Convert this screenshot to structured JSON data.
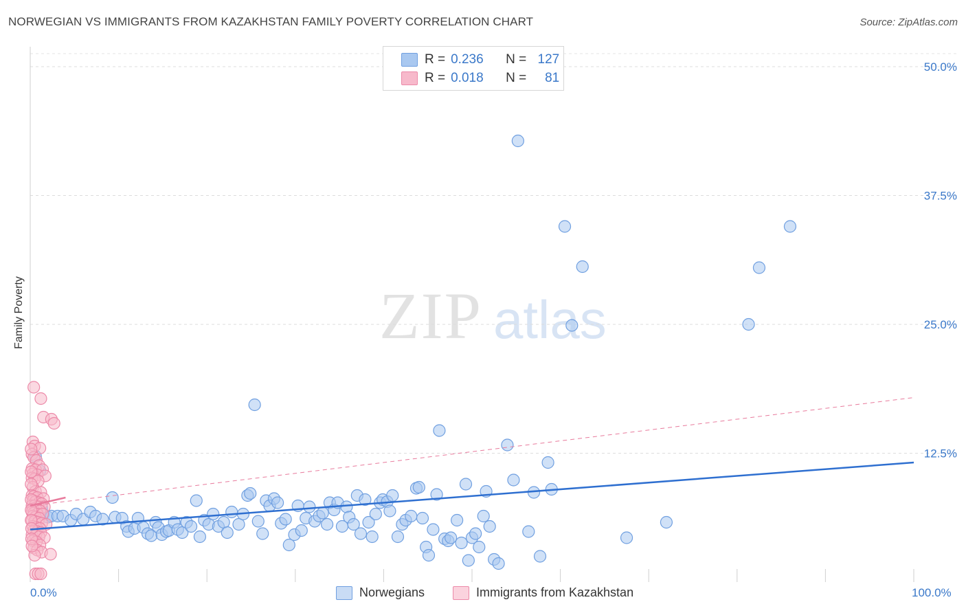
{
  "title": "NORWEGIAN VS IMMIGRANTS FROM KAZAKHSTAN FAMILY POVERTY CORRELATION CHART",
  "source": "Source: ZipAtlas.com",
  "watermark": {
    "zip": "ZIP",
    "atlas": "atlas"
  },
  "legend_top": {
    "rows": [
      {
        "r_label": "R =",
        "r_value": "0.236",
        "n_label": "N =",
        "n_value": "127",
        "color": "#a9c8f0",
        "border": "#6f9fe0"
      },
      {
        "r_label": "R =",
        "r_value": "0.018",
        "n_label": "N =",
        "n_value": "81",
        "color": "#f7b9cb",
        "border": "#ec89a8"
      }
    ]
  },
  "legend_bottom": [
    {
      "label": "Norwegians",
      "color": "#a9c8f0",
      "border": "#6f9fe0"
    },
    {
      "label": "Immigrants from Kazakhstan",
      "color": "#f7b9cb",
      "border": "#ec89a8"
    }
  ],
  "chart_data": {
    "type": "scatter",
    "title": "NORWEGIAN VS IMMIGRANTS FROM KAZAKHSTAN FAMILY POVERTY CORRELATION CHART",
    "xlabel": "",
    "ylabel": "Family Poverty",
    "xlim": [
      0,
      100
    ],
    "ylim": [
      0,
      50
    ],
    "x_tick_labels": [
      "0.0%",
      "100.0%"
    ],
    "y_ticks": [
      12.5,
      25.0,
      37.5,
      50.0
    ],
    "y_tick_labels": [
      "12.5%",
      "25.0%",
      "37.5%",
      "50.0%"
    ],
    "grid": true,
    "series": [
      {
        "name": "Norwegians",
        "color": "#6f9fe0",
        "fill": "#a9c8f0",
        "trend": {
          "x": [
            0,
            100
          ],
          "y": [
            5.1,
            11.6
          ],
          "style": "solid",
          "color": "#2e6fd0"
        },
        "points": [
          [
            0.6,
            12.2
          ],
          [
            1.1,
            10.8
          ],
          [
            1.3,
            7.2
          ],
          [
            1.5,
            6.6
          ],
          [
            2.0,
            6.3
          ],
          [
            2.4,
            6.4
          ],
          [
            3.1,
            6.4
          ],
          [
            3.7,
            6.4
          ],
          [
            4.6,
            6.0
          ],
          [
            5.2,
            6.6
          ],
          [
            6.0,
            6.1
          ],
          [
            6.8,
            6.8
          ],
          [
            7.4,
            6.4
          ],
          [
            8.2,
            6.1
          ],
          [
            9.3,
            8.2
          ],
          [
            9.6,
            6.3
          ],
          [
            10.4,
            6.2
          ],
          [
            10.9,
            5.4
          ],
          [
            11.1,
            4.9
          ],
          [
            11.8,
            5.2
          ],
          [
            12.2,
            6.2
          ],
          [
            12.8,
            5.3
          ],
          [
            13.3,
            4.7
          ],
          [
            13.7,
            4.5
          ],
          [
            14.2,
            5.8
          ],
          [
            14.5,
            5.3
          ],
          [
            14.9,
            4.6
          ],
          [
            15.4,
            4.9
          ],
          [
            15.7,
            5.0
          ],
          [
            16.3,
            5.8
          ],
          [
            16.7,
            5.1
          ],
          [
            17.2,
            4.8
          ],
          [
            17.7,
            5.8
          ],
          [
            18.2,
            5.4
          ],
          [
            18.8,
            7.9
          ],
          [
            19.2,
            4.4
          ],
          [
            19.7,
            6.0
          ],
          [
            20.2,
            5.6
          ],
          [
            20.7,
            6.6
          ],
          [
            21.3,
            5.4
          ],
          [
            21.9,
            5.8
          ],
          [
            22.3,
            4.8
          ],
          [
            22.8,
            6.8
          ],
          [
            23.6,
            5.6
          ],
          [
            24.1,
            6.6
          ],
          [
            24.6,
            8.4
          ],
          [
            24.9,
            8.6
          ],
          [
            25.4,
            17.2
          ],
          [
            25.8,
            5.9
          ],
          [
            26.3,
            4.7
          ],
          [
            26.7,
            7.9
          ],
          [
            27.1,
            7.4
          ],
          [
            27.6,
            8.1
          ],
          [
            28.0,
            7.7
          ],
          [
            28.4,
            5.7
          ],
          [
            28.9,
            6.1
          ],
          [
            29.3,
            3.6
          ],
          [
            29.9,
            4.6
          ],
          [
            30.3,
            7.4
          ],
          [
            30.7,
            5.0
          ],
          [
            31.2,
            6.2
          ],
          [
            31.6,
            7.3
          ],
          [
            32.2,
            5.9
          ],
          [
            32.7,
            6.4
          ],
          [
            33.1,
            6.7
          ],
          [
            33.6,
            5.6
          ],
          [
            33.9,
            7.7
          ],
          [
            34.4,
            7.0
          ],
          [
            34.8,
            7.7
          ],
          [
            35.3,
            5.4
          ],
          [
            35.8,
            7.3
          ],
          [
            36.1,
            6.3
          ],
          [
            36.6,
            5.6
          ],
          [
            37.0,
            8.4
          ],
          [
            37.4,
            4.7
          ],
          [
            37.9,
            8.0
          ],
          [
            38.3,
            5.8
          ],
          [
            38.7,
            4.4
          ],
          [
            39.1,
            6.6
          ],
          [
            39.6,
            7.7
          ],
          [
            39.9,
            8.0
          ],
          [
            40.4,
            7.8
          ],
          [
            40.7,
            6.9
          ],
          [
            41.0,
            8.4
          ],
          [
            41.6,
            4.4
          ],
          [
            42.1,
            5.6
          ],
          [
            42.5,
            6.0
          ],
          [
            43.1,
            6.4
          ],
          [
            43.7,
            9.1
          ],
          [
            44.0,
            9.2
          ],
          [
            44.4,
            6.2
          ],
          [
            44.8,
            3.4
          ],
          [
            45.1,
            2.6
          ],
          [
            45.6,
            5.1
          ],
          [
            46.0,
            8.5
          ],
          [
            46.3,
            14.7
          ],
          [
            46.9,
            4.2
          ],
          [
            47.3,
            4.0
          ],
          [
            47.6,
            4.3
          ],
          [
            48.3,
            6.0
          ],
          [
            48.8,
            3.8
          ],
          [
            49.3,
            9.5
          ],
          [
            49.6,
            2.1
          ],
          [
            50.0,
            4.3
          ],
          [
            50.4,
            4.7
          ],
          [
            50.8,
            3.4
          ],
          [
            51.3,
            6.4
          ],
          [
            51.6,
            8.8
          ],
          [
            52.0,
            5.4
          ],
          [
            52.5,
            2.2
          ],
          [
            53.0,
            1.8
          ],
          [
            54.0,
            13.3
          ],
          [
            54.7,
            9.9
          ],
          [
            55.2,
            42.8
          ],
          [
            56.4,
            4.9
          ],
          [
            57.0,
            8.7
          ],
          [
            57.7,
            2.5
          ],
          [
            58.6,
            11.6
          ],
          [
            59.0,
            9.0
          ],
          [
            60.5,
            34.5
          ],
          [
            61.3,
            24.9
          ],
          [
            62.5,
            30.6
          ],
          [
            67.5,
            4.3
          ],
          [
            72.0,
            5.8
          ],
          [
            81.3,
            25.0
          ],
          [
            82.5,
            30.5
          ],
          [
            86.0,
            34.5
          ]
        ]
      },
      {
        "name": "Immigrants from Kazakhstan",
        "color": "#ec89a8",
        "fill": "#f7b9cb",
        "trend": {
          "x": [
            0,
            100
          ],
          "y": [
            7.4,
            17.9
          ],
          "style": "dashed",
          "color": "#e87a9c"
        },
        "trend_solid_segment": {
          "x": [
            0,
            4
          ],
          "y": [
            7.4,
            8.2
          ]
        },
        "points": [
          [
            0.4,
            18.9
          ],
          [
            1.2,
            17.8
          ],
          [
            1.5,
            16.0
          ],
          [
            2.4,
            15.8
          ],
          [
            2.7,
            15.4
          ],
          [
            0.3,
            13.6
          ],
          [
            0.5,
            13.2
          ],
          [
            1.1,
            13.0
          ],
          [
            0.2,
            12.4
          ],
          [
            0.4,
            12.1
          ],
          [
            0.7,
            11.8
          ],
          [
            1.0,
            11.3
          ],
          [
            0.2,
            11.0
          ],
          [
            0.6,
            10.9
          ],
          [
            1.4,
            10.9
          ],
          [
            0.3,
            10.5
          ],
          [
            0.8,
            10.4
          ],
          [
            1.7,
            10.3
          ],
          [
            0.2,
            10.1
          ],
          [
            0.5,
            10.0
          ],
          [
            0.9,
            9.8
          ],
          [
            0.3,
            9.2
          ],
          [
            0.6,
            8.8
          ],
          [
            1.2,
            8.7
          ],
          [
            0.2,
            8.4
          ],
          [
            0.4,
            8.3
          ],
          [
            0.8,
            8.2
          ],
          [
            1.5,
            8.1
          ],
          [
            0.3,
            7.9
          ],
          [
            0.6,
            7.8
          ],
          [
            1.0,
            7.7
          ],
          [
            1.3,
            7.6
          ],
          [
            0.2,
            7.4
          ],
          [
            0.5,
            7.4
          ],
          [
            0.9,
            7.3
          ],
          [
            1.6,
            7.3
          ],
          [
            0.3,
            7.1
          ],
          [
            0.7,
            7.0
          ],
          [
            1.1,
            6.9
          ],
          [
            0.2,
            6.8
          ],
          [
            0.4,
            6.7
          ],
          [
            0.8,
            6.6
          ],
          [
            1.4,
            6.6
          ],
          [
            0.3,
            6.4
          ],
          [
            0.6,
            6.3
          ],
          [
            1.0,
            6.2
          ],
          [
            0.2,
            6.0
          ],
          [
            0.5,
            5.9
          ],
          [
            0.9,
            5.8
          ],
          [
            1.3,
            5.7
          ],
          [
            1.8,
            5.6
          ],
          [
            0.3,
            5.4
          ],
          [
            0.7,
            5.3
          ],
          [
            1.1,
            5.2
          ],
          [
            0.4,
            5.0
          ],
          [
            0.8,
            4.9
          ],
          [
            1.2,
            4.8
          ],
          [
            0.2,
            4.6
          ],
          [
            0.6,
            4.5
          ],
          [
            1.0,
            4.4
          ],
          [
            1.6,
            4.3
          ],
          [
            0.3,
            4.0
          ],
          [
            0.7,
            3.9
          ],
          [
            1.1,
            3.6
          ],
          [
            0.4,
            3.3
          ],
          [
            0.8,
            3.1
          ],
          [
            1.3,
            2.9
          ],
          [
            0.5,
            2.6
          ],
          [
            2.3,
            2.7
          ],
          [
            0.6,
            0.8
          ],
          [
            0.9,
            0.8
          ],
          [
            1.2,
            0.8
          ],
          [
            0.1,
            9.5
          ],
          [
            0.1,
            8.0
          ],
          [
            0.1,
            7.0
          ],
          [
            0.1,
            6.0
          ],
          [
            0.15,
            5.2
          ],
          [
            0.15,
            4.2
          ],
          [
            0.1,
            10.7
          ],
          [
            0.1,
            12.9
          ],
          [
            0.2,
            3.5
          ]
        ]
      }
    ]
  }
}
